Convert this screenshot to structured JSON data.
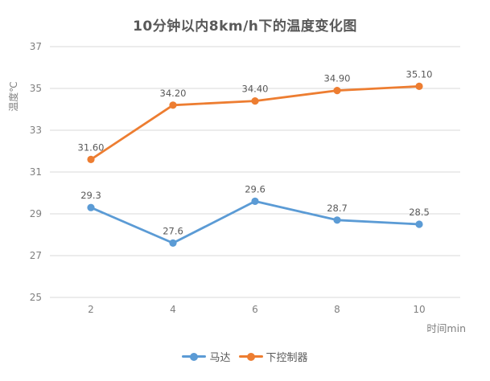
{
  "chart_data": {
    "type": "line",
    "title": "10分钟以内8km/h下的温度变化图",
    "xlabel": "时间min",
    "ylabel": "温度℃",
    "categories": [
      "2",
      "4",
      "6",
      "8",
      "10"
    ],
    "series": [
      {
        "name": "马达",
        "color": "#5B9BD5",
        "values": [
          29.3,
          27.6,
          29.6,
          28.7,
          28.5
        ],
        "labels": [
          "29.3",
          "27.6",
          "29.6",
          "28.7",
          "28.5"
        ]
      },
      {
        "name": "下控制器",
        "color": "#ED7D31",
        "values": [
          31.6,
          34.2,
          34.4,
          34.9,
          35.1
        ],
        "labels": [
          "31.60",
          "34.20",
          "34.40",
          "34.90",
          "35.10"
        ]
      }
    ],
    "ylim": [
      25,
      37
    ],
    "yticks": [
      25,
      27,
      29,
      31,
      33,
      35,
      37
    ],
    "grid": true,
    "legend_position": "bottom",
    "colors": {
      "grid": "#D9D9D9",
      "axis_line": "#D9D9D9",
      "tick_text": "#808080",
      "data_label_text": "#595959",
      "title_text": "#595959"
    }
  }
}
